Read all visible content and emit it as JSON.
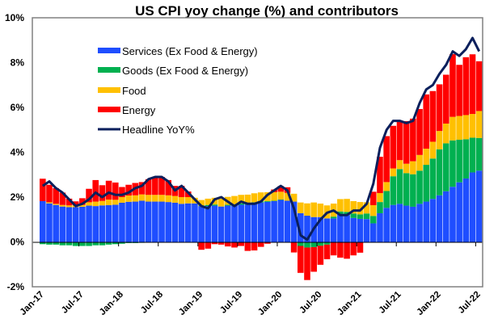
{
  "chart_data": {
    "type": "bar",
    "stacked": true,
    "title": "US CPI yoy change (%) and contributors",
    "xlabel": "",
    "ylabel": "",
    "ylim": [
      -2,
      10
    ],
    "yticks": [
      "-2%",
      "0%",
      "2%",
      "4%",
      "6%",
      "8%",
      "10%"
    ],
    "ytick_values": [
      -2,
      0,
      2,
      4,
      6,
      8,
      10
    ],
    "xtick_labels": [
      "Jan-17",
      "Jul-17",
      "Jan-18",
      "Jul-18",
      "Jan-19",
      "Jul-19",
      "Jan-20",
      "Jul-20",
      "Jan-21",
      "Jul-21",
      "Jan-22",
      "Jul-22"
    ],
    "xtick_every": 6,
    "legend_position": "top-left",
    "grid": false,
    "categories": [
      "Jan-17",
      "Feb-17",
      "Mar-17",
      "Apr-17",
      "May-17",
      "Jun-17",
      "Jul-17",
      "Aug-17",
      "Sep-17",
      "Oct-17",
      "Nov-17",
      "Dec-17",
      "Jan-18",
      "Feb-18",
      "Mar-18",
      "Apr-18",
      "May-18",
      "Jun-18",
      "Jul-18",
      "Aug-18",
      "Sep-18",
      "Oct-18",
      "Nov-18",
      "Dec-18",
      "Jan-19",
      "Feb-19",
      "Mar-19",
      "Apr-19",
      "May-19",
      "Jun-19",
      "Jul-19",
      "Aug-19",
      "Sep-19",
      "Oct-19",
      "Nov-19",
      "Dec-19",
      "Jan-20",
      "Feb-20",
      "Mar-20",
      "Apr-20",
      "May-20",
      "Jun-20",
      "Jul-20",
      "Aug-20",
      "Sep-20",
      "Oct-20",
      "Nov-20",
      "Dec-20",
      "Jan-21",
      "Feb-21",
      "Mar-21",
      "Apr-21",
      "May-21",
      "Jun-21",
      "Jul-21",
      "Aug-21",
      "Sep-21",
      "Oct-21",
      "Nov-21",
      "Dec-21",
      "Jan-22",
      "Feb-22",
      "Mar-22",
      "Apr-22",
      "May-22",
      "Jun-22",
      "Jul-22"
    ],
    "series": [
      {
        "name": "Services (Ex Food & Energy)",
        "color": "#1f4eff",
        "values": [
          1.82,
          1.72,
          1.65,
          1.58,
          1.55,
          1.55,
          1.57,
          1.62,
          1.6,
          1.63,
          1.64,
          1.66,
          1.75,
          1.79,
          1.8,
          1.84,
          1.8,
          1.8,
          1.8,
          1.78,
          1.75,
          1.7,
          1.72,
          1.72,
          1.6,
          1.6,
          1.62,
          1.58,
          1.62,
          1.62,
          1.66,
          1.66,
          1.72,
          1.76,
          1.79,
          1.82,
          1.88,
          1.84,
          1.8,
          1.28,
          1.17,
          1.11,
          1.11,
          1.05,
          1.05,
          1.24,
          1.2,
          1.07,
          1.03,
          1.02,
          0.83,
          1.28,
          1.52,
          1.65,
          1.7,
          1.62,
          1.57,
          1.7,
          1.8,
          1.92,
          2.08,
          2.26,
          2.46,
          2.66,
          2.83,
          3.1,
          3.18
        ]
      },
      {
        "name": "Goods (Ex Food & Energy)",
        "color": "#00b050",
        "values": [
          -0.1,
          -0.12,
          -0.12,
          -0.15,
          -0.15,
          -0.18,
          -0.18,
          -0.18,
          -0.15,
          -0.15,
          -0.12,
          -0.1,
          -0.08,
          -0.05,
          -0.05,
          -0.04,
          -0.03,
          -0.02,
          -0.02,
          -0.02,
          0.0,
          0.0,
          0.0,
          0.0,
          0.02,
          0.05,
          0.05,
          0.0,
          0.04,
          0.05,
          0.06,
          0.05,
          0.05,
          0.05,
          0.03,
          0.02,
          0.01,
          0.0,
          -0.02,
          -0.18,
          -0.25,
          -0.23,
          -0.17,
          -0.12,
          0.08,
          0.12,
          0.14,
          0.2,
          0.2,
          0.25,
          0.33,
          0.5,
          0.75,
          1.28,
          1.55,
          1.45,
          1.45,
          1.48,
          1.64,
          1.8,
          2.05,
          2.14,
          2.07,
          1.9,
          1.75,
          1.55,
          1.46
        ]
      },
      {
        "name": "Food",
        "color": "#ffc000",
        "values": [
          0.0,
          0.05,
          0.05,
          0.07,
          0.08,
          0.08,
          0.08,
          0.15,
          0.2,
          0.2,
          0.25,
          0.22,
          0.25,
          0.28,
          0.28,
          0.28,
          0.3,
          0.3,
          0.3,
          0.3,
          0.3,
          0.3,
          0.28,
          0.25,
          0.25,
          0.28,
          0.3,
          0.35,
          0.35,
          0.38,
          0.38,
          0.4,
          0.4,
          0.4,
          0.4,
          0.38,
          0.35,
          0.35,
          0.35,
          0.48,
          0.55,
          0.65,
          0.6,
          0.58,
          0.58,
          0.55,
          0.58,
          0.55,
          0.55,
          0.5,
          0.48,
          0.4,
          0.4,
          0.35,
          0.4,
          0.42,
          0.58,
          0.7,
          0.72,
          0.75,
          0.82,
          0.88,
          1.05,
          1.06,
          1.08,
          1.06,
          1.2
        ]
      },
      {
        "name": "Energy",
        "color": "#ff0000",
        "values": [
          1.0,
          0.78,
          0.7,
          0.55,
          0.3,
          0.18,
          0.3,
          0.6,
          0.96,
          0.7,
          0.84,
          0.77,
          0.45,
          0.48,
          0.55,
          0.55,
          0.7,
          0.75,
          0.8,
          0.68,
          0.45,
          0.5,
          0.25,
          0.0,
          -0.35,
          -0.3,
          -0.1,
          -0.12,
          -0.2,
          -0.25,
          -0.18,
          -0.4,
          -0.38,
          -0.22,
          -0.08,
          0.12,
          0.25,
          0.25,
          -0.45,
          -1.2,
          -1.45,
          -1.1,
          -0.85,
          -0.65,
          -0.6,
          -0.7,
          -0.75,
          -0.6,
          -0.48,
          0.0,
          0.6,
          1.62,
          2.05,
          1.9,
          1.75,
          1.9,
          1.9,
          2.05,
          2.42,
          2.26,
          2.08,
          2.18,
          2.8,
          2.28,
          2.58,
          2.66,
          2.22
        ]
      },
      {
        "name": "Headline YoY%",
        "color": "#0a1f5c",
        "type": "line",
        "values": [
          2.5,
          2.7,
          2.4,
          2.2,
          1.9,
          1.6,
          1.7,
          1.9,
          2.2,
          2.0,
          2.2,
          2.1,
          2.1,
          2.2,
          2.4,
          2.5,
          2.8,
          2.9,
          2.9,
          2.7,
          2.3,
          2.5,
          2.2,
          1.9,
          1.6,
          1.5,
          1.9,
          2.0,
          1.8,
          1.6,
          1.8,
          1.7,
          1.7,
          1.8,
          2.1,
          2.3,
          2.5,
          2.3,
          1.5,
          0.3,
          0.1,
          0.6,
          1.0,
          1.3,
          1.4,
          1.2,
          1.2,
          1.4,
          1.4,
          1.7,
          2.6,
          4.2,
          5.0,
          5.4,
          5.4,
          5.3,
          5.4,
          6.2,
          6.8,
          7.0,
          7.5,
          7.9,
          8.5,
          8.3,
          8.6,
          9.1,
          8.5
        ]
      }
    ]
  }
}
